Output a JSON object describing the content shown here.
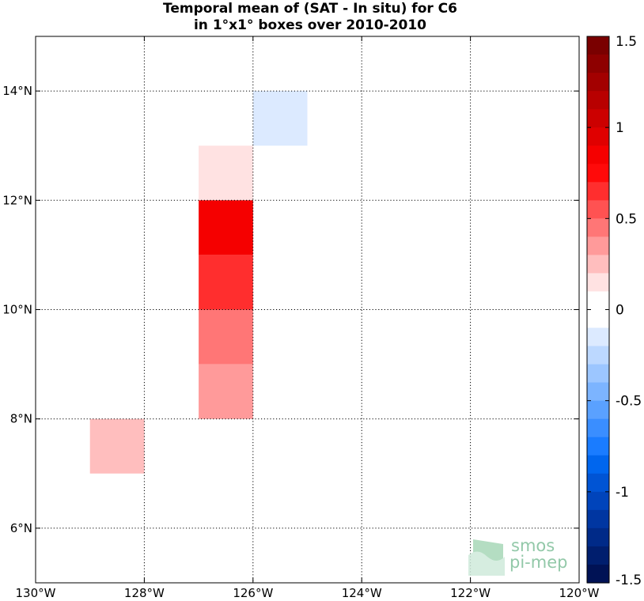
{
  "title_line1": "Temporal mean of (SAT - In situ) for C6",
  "title_line2": "in 1°x1° boxes over 2010-2010",
  "logo": {
    "line1": "smos",
    "line2": "pi-mep",
    "color": "#7fbf9a"
  },
  "chart_data": {
    "type": "heatmap",
    "title": "Temporal mean of (SAT - In situ) for C6 in 1°x1° boxes over 2010-2010",
    "xlim": [
      -130,
      -120
    ],
    "ylim": [
      5,
      15
    ],
    "grid": true,
    "x_ticks": [
      -130,
      -128,
      -126,
      -124,
      -122,
      -120
    ],
    "x_tick_labels": [
      "130°W",
      "128°W",
      "126°W",
      "124°W",
      "122°W",
      "120°W"
    ],
    "y_ticks": [
      6,
      8,
      10,
      12,
      14
    ],
    "y_tick_labels": [
      "6°N",
      "8°N",
      "10°N",
      "12°N",
      "14°N"
    ],
    "cells": [
      {
        "lon": [
          -126,
          -125
        ],
        "lat": [
          13,
          14
        ],
        "value": -0.1
      },
      {
        "lon": [
          -127,
          -126
        ],
        "lat": [
          12,
          13
        ],
        "value": 0.15
      },
      {
        "lon": [
          -127,
          -126
        ],
        "lat": [
          11,
          12
        ],
        "value": 0.8
      },
      {
        "lon": [
          -127,
          -126
        ],
        "lat": [
          10,
          11
        ],
        "value": 0.65
      },
      {
        "lon": [
          -127,
          -126
        ],
        "lat": [
          9,
          10
        ],
        "value": 0.5
      },
      {
        "lon": [
          -127,
          -126
        ],
        "lat": [
          8,
          9
        ],
        "value": 0.35
      },
      {
        "lon": [
          -129,
          -128
        ],
        "lat": [
          7,
          8
        ],
        "value": 0.25
      }
    ],
    "colorbar": {
      "range": [
        -1.5,
        1.5
      ],
      "ticks": [
        1.5,
        1,
        0.5,
        0,
        -0.5,
        -1,
        -1.5
      ],
      "tick_labels": [
        "1.5",
        "1",
        "0.5",
        "0",
        "-0.5",
        "-1",
        "-1.5"
      ],
      "colors_top_to_bottom": [
        "#7a0000",
        "#8e0000",
        "#a30000",
        "#b80000",
        "#cc0000",
        "#e00000",
        "#f50000",
        "#ff0a0a",
        "#ff2e2e",
        "#ff5252",
        "#ff7676",
        "#ff9a9a",
        "#ffbebe",
        "#ffe2e2",
        "#ffffff",
        "#ffffff",
        "#dceaff",
        "#bcd8ff",
        "#9cc6ff",
        "#7cb4ff",
        "#5aa1ff",
        "#3a8eff",
        "#1a7cff",
        "#0066ee",
        "#0054d4",
        "#0044bb",
        "#0036a1",
        "#002a88",
        "#001e6e",
        "#001255"
      ]
    }
  }
}
